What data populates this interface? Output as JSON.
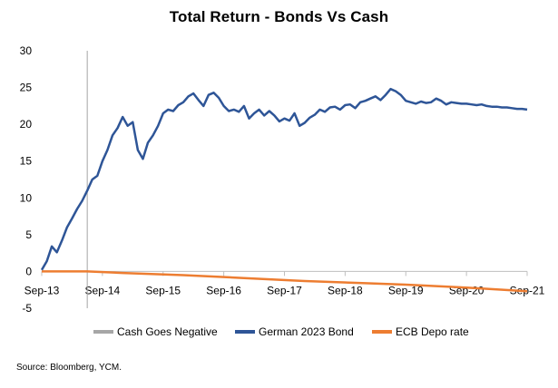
{
  "chart_data": {
    "type": "line",
    "title": "Total Return - Bonds Vs Cash",
    "x_ticks": [
      "Sep-13",
      "Sep-14",
      "Sep-15",
      "Sep-16",
      "Sep-17",
      "Sep-18",
      "Sep-19",
      "Sep-20",
      "Sep-21"
    ],
    "y_ticks": [
      "30",
      "25",
      "20",
      "15",
      "10",
      "5",
      "0",
      "-5"
    ],
    "ylim": [
      -5,
      30
    ],
    "xlim": [
      "2013-09",
      "2021-09"
    ],
    "grid": false,
    "legend_position": "bottom",
    "vertical_marker": {
      "name": "Cash Goes Negative",
      "x": "2014-06",
      "color": "#a6a6a6"
    },
    "series": [
      {
        "name": "German 2023 Bond",
        "color": "#2e5597",
        "x": [
          "2013-09",
          "2013-10",
          "2013-11",
          "2013-12",
          "2014-01",
          "2014-02",
          "2014-03",
          "2014-04",
          "2014-05",
          "2014-06",
          "2014-07",
          "2014-08",
          "2014-09",
          "2014-10",
          "2014-11",
          "2014-12",
          "2015-01",
          "2015-02",
          "2015-03",
          "2015-04",
          "2015-05",
          "2015-06",
          "2015-07",
          "2015-08",
          "2015-09",
          "2015-10",
          "2015-11",
          "2015-12",
          "2016-01",
          "2016-02",
          "2016-03",
          "2016-04",
          "2016-05",
          "2016-06",
          "2016-07",
          "2016-08",
          "2016-09",
          "2016-10",
          "2016-11",
          "2016-12",
          "2017-01",
          "2017-02",
          "2017-03",
          "2017-04",
          "2017-05",
          "2017-06",
          "2017-07",
          "2017-08",
          "2017-09",
          "2017-10",
          "2017-11",
          "2017-12",
          "2018-01",
          "2018-02",
          "2018-03",
          "2018-04",
          "2018-05",
          "2018-06",
          "2018-07",
          "2018-08",
          "2018-09",
          "2018-10",
          "2018-11",
          "2018-12",
          "2019-01",
          "2019-02",
          "2019-03",
          "2019-04",
          "2019-05",
          "2019-06",
          "2019-07",
          "2019-08",
          "2019-09",
          "2019-10",
          "2019-11",
          "2019-12",
          "2020-01",
          "2020-02",
          "2020-03",
          "2020-04",
          "2020-05",
          "2020-06",
          "2020-07",
          "2020-08",
          "2020-09",
          "2020-10",
          "2020-11",
          "2020-12",
          "2021-01",
          "2021-02",
          "2021-03",
          "2021-04",
          "2021-05",
          "2021-06",
          "2021-07",
          "2021-08",
          "2021-09"
        ],
        "values": [
          0.2,
          1.4,
          3.4,
          2.6,
          4.2,
          6.0,
          7.2,
          8.5,
          9.6,
          11.0,
          12.5,
          13.0,
          15.0,
          16.5,
          18.5,
          19.5,
          21.0,
          19.8,
          20.3,
          16.5,
          15.3,
          17.5,
          18.5,
          19.8,
          21.5,
          22.0,
          21.8,
          22.6,
          23.0,
          23.8,
          24.2,
          23.3,
          22.5,
          24.0,
          24.3,
          23.6,
          22.5,
          21.8,
          22.0,
          21.7,
          22.5,
          20.8,
          21.5,
          22.0,
          21.2,
          21.8,
          21.2,
          20.4,
          20.8,
          20.5,
          21.5,
          19.8,
          20.2,
          20.9,
          21.3,
          22.0,
          21.7,
          22.3,
          22.4,
          22.0,
          22.6,
          22.7,
          22.2,
          23.0,
          23.2,
          23.5,
          23.8,
          23.3,
          24.0,
          24.8,
          24.5,
          24.0,
          23.2,
          23.0,
          22.8,
          23.1,
          22.9,
          23.0,
          23.5,
          23.2,
          22.7,
          23.0,
          22.9,
          22.8,
          22.8,
          22.7,
          22.6,
          22.7,
          22.5,
          22.4,
          22.4,
          22.3,
          22.3,
          22.2,
          22.1,
          22.1,
          22.0
        ]
      },
      {
        "name": "ECB Depo rate",
        "color": "#ed7d31",
        "x": [
          "2013-09",
          "2014-06",
          "2015-01",
          "2016-01",
          "2017-01",
          "2018-01",
          "2019-01",
          "2019-09",
          "2020-09",
          "2021-09"
        ],
        "values": [
          0.0,
          0.0,
          -0.2,
          -0.5,
          -0.9,
          -1.3,
          -1.6,
          -1.8,
          -2.2,
          -2.7
        ]
      }
    ]
  },
  "source": "Source: Bloomberg, YCM."
}
